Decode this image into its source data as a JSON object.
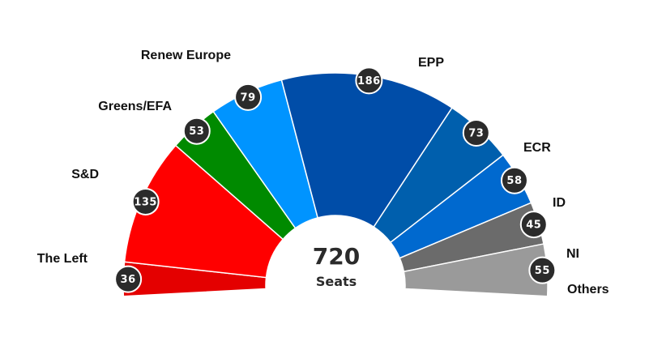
{
  "chart_data": {
    "type": "pie",
    "variant": "parliament-semicircle",
    "total": {
      "value": "720",
      "label": "Seats"
    },
    "series": [
      {
        "name": "The Left",
        "value": 36,
        "color": "#e40000"
      },
      {
        "name": "S&D",
        "value": 135,
        "color": "#ff0000"
      },
      {
        "name": "Greens/EFA",
        "value": 53,
        "color": "#008a00"
      },
      {
        "name": "Renew Europe",
        "value": 79,
        "color": "#0094ff"
      },
      {
        "name": "EPP",
        "value": 186,
        "color": "#004da8"
      },
      {
        "name": "ECR",
        "value": 73,
        "color": "#005fad"
      },
      {
        "name": "ID",
        "value": 58,
        "color": "#0069cf"
      },
      {
        "name": "NI",
        "value": 45,
        "color": "#6b6b6b"
      },
      {
        "name": "Others",
        "value": 55,
        "color": "#9a9a9a"
      }
    ]
  }
}
